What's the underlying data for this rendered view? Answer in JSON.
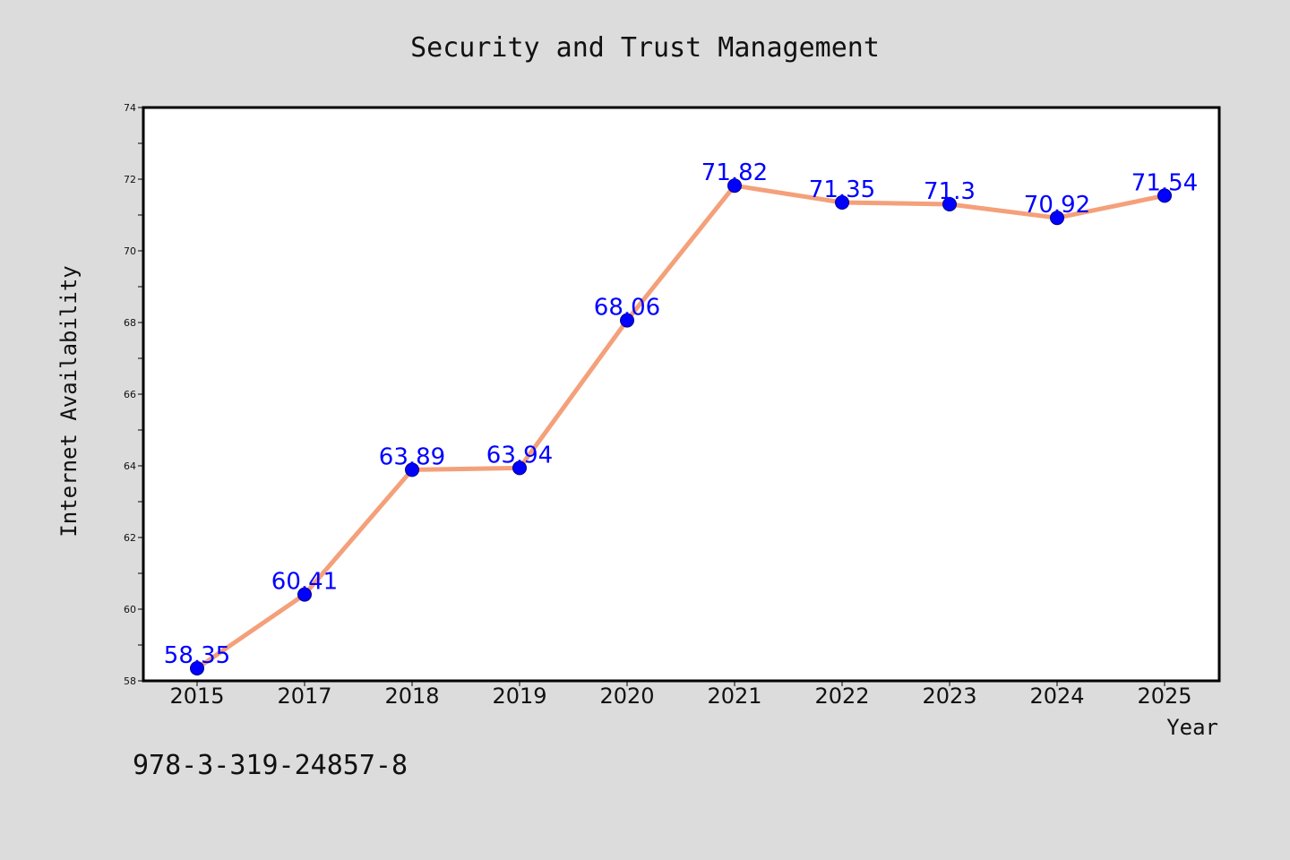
{
  "chart_data": {
    "type": "line",
    "title": "Security and Trust Management",
    "xlabel": "Year",
    "ylabel": "Internet Availability",
    "categories": [
      "2015",
      "2017",
      "2018",
      "2019",
      "2020",
      "2021",
      "2022",
      "2023",
      "2024",
      "2025"
    ],
    "values": [
      58.35,
      60.41,
      63.89,
      63.94,
      68.06,
      71.82,
      71.35,
      71.3,
      70.92,
      71.54
    ],
    "data_labels": [
      "58.35",
      "60.41",
      "63.89",
      "63.94",
      "68.06",
      "71.82",
      "71.35",
      "71.3",
      "70.92",
      "71.54"
    ],
    "ylim": [
      58,
      74
    ],
    "yticks": [
      "58",
      "60",
      "62",
      "64",
      "66",
      "68",
      "70",
      "72",
      "74"
    ],
    "line_color": "#f4a07a",
    "marker_color": "#0000ff",
    "label_color": "#0000ff",
    "grid": false
  },
  "footer": {
    "isbn": "978-3-319-24857-8"
  }
}
